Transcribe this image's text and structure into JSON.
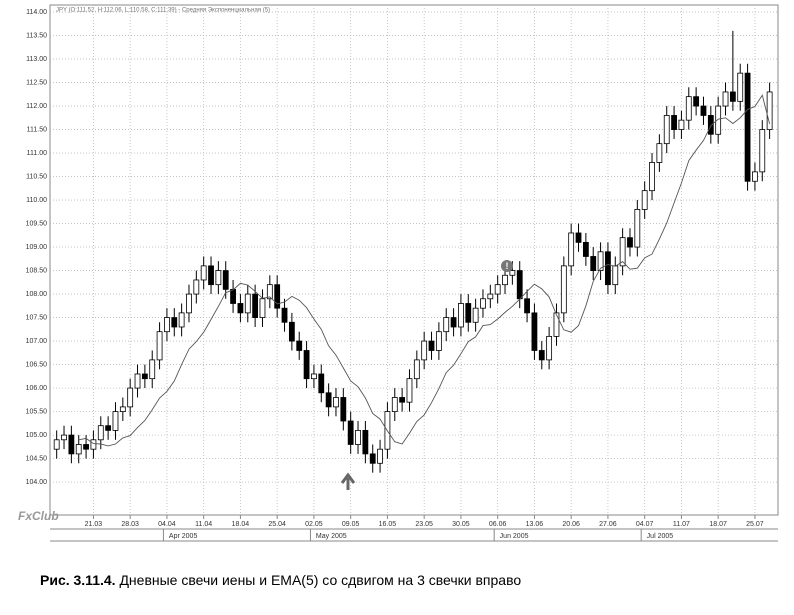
{
  "chart_data": {
    "type": "candlestick",
    "header": "JPY (O:111.52, H:112.06, L:110.58, C:111.39) - Средняя Экспоненциальная (5)",
    "categories": [
      null,
      null,
      null,
      null,
      null,
      "21.03",
      null,
      null,
      null,
      null,
      "28.03",
      null,
      null,
      null,
      null,
      "04.04",
      null,
      null,
      null,
      null,
      "11.04",
      null,
      null,
      null,
      null,
      "18.04",
      null,
      null,
      null,
      null,
      "25.04",
      null,
      null,
      null,
      null,
      "02.05",
      null,
      null,
      null,
      null,
      "09.05",
      null,
      null,
      null,
      null,
      "16.05",
      null,
      null,
      null,
      null,
      "23.05",
      null,
      null,
      null,
      null,
      "30.05",
      null,
      null,
      null,
      null,
      "06.06",
      null,
      null,
      null,
      null,
      "13.06",
      null,
      null,
      null,
      null,
      "20.06",
      null,
      null,
      null,
      null,
      "27.06",
      null,
      null,
      null,
      null,
      "04.07",
      null,
      null,
      null,
      null,
      "11.07",
      null,
      null,
      null,
      null,
      "18.07",
      null,
      null,
      null,
      null,
      "25.07",
      null,
      null
    ],
    "month_labels": [
      "Apr 2005",
      "May 2005",
      "Jun 2005",
      "Jul 2005"
    ],
    "open": [
      104.7,
      104.9,
      105.0,
      104.6,
      104.8,
      104.7,
      104.9,
      105.2,
      105.1,
      105.5,
      105.6,
      106.0,
      106.3,
      106.2,
      106.6,
      107.2,
      107.5,
      107.3,
      107.6,
      108.0,
      108.3,
      108.6,
      108.2,
      108.5,
      108.1,
      107.8,
      107.6,
      108.0,
      107.5,
      107.9,
      108.2,
      107.7,
      107.4,
      107.0,
      106.8,
      106.2,
      106.3,
      105.9,
      105.6,
      105.8,
      105.3,
      104.8,
      105.1,
      104.6,
      104.4,
      104.7,
      105.5,
      105.8,
      105.7,
      106.2,
      106.6,
      107.0,
      106.8,
      107.2,
      107.5,
      107.3,
      107.8,
      107.4,
      107.7,
      107.9,
      108.0,
      108.2,
      108.4,
      108.5,
      107.9,
      107.6,
      106.8,
      106.6,
      107.1,
      107.6,
      108.6,
      109.3,
      109.1,
      108.8,
      108.5,
      108.9,
      108.2,
      108.6,
      109.2,
      109.0,
      109.8,
      110.2,
      110.8,
      111.2,
      111.8,
      111.5,
      111.7,
      112.2,
      112.0,
      111.8,
      111.4,
      112.0,
      112.3,
      112.1,
      112.7,
      110.4,
      110.6,
      111.5
    ],
    "high": [
      105.1,
      105.2,
      105.2,
      105.0,
      105.0,
      105.1,
      105.4,
      105.4,
      105.7,
      105.8,
      106.2,
      106.5,
      106.5,
      106.8,
      107.4,
      107.7,
      107.7,
      107.8,
      108.2,
      108.5,
      108.8,
      108.8,
      108.7,
      108.7,
      108.3,
      108.0,
      108.2,
      108.2,
      108.1,
      108.4,
      108.4,
      107.9,
      107.6,
      107.2,
      107.0,
      106.5,
      106.5,
      106.1,
      106.0,
      106.0,
      105.5,
      105.3,
      105.3,
      104.8,
      104.9,
      105.7,
      106.0,
      106.0,
      106.4,
      106.8,
      107.2,
      107.2,
      107.4,
      107.7,
      107.7,
      108.0,
      108.0,
      107.9,
      108.1,
      108.2,
      108.4,
      108.6,
      108.7,
      108.7,
      108.1,
      107.8,
      107.0,
      107.3,
      107.8,
      108.8,
      109.5,
      109.5,
      109.3,
      109.0,
      109.1,
      109.1,
      108.8,
      109.4,
      109.4,
      110.0,
      110.4,
      111.0,
      111.4,
      112.0,
      112.0,
      111.9,
      112.4,
      112.4,
      112.2,
      112.0,
      112.2,
      112.5,
      113.6,
      112.9,
      112.9,
      110.8,
      111.7,
      112.5
    ],
    "low": [
      104.5,
      104.7,
      104.4,
      104.4,
      104.5,
      104.5,
      104.7,
      104.9,
      104.9,
      105.3,
      105.4,
      105.8,
      106.0,
      106.0,
      106.4,
      107.0,
      107.1,
      107.1,
      107.4,
      107.8,
      108.1,
      108.0,
      108.0,
      107.9,
      107.6,
      107.4,
      107.4,
      107.3,
      107.3,
      107.7,
      107.5,
      107.2,
      106.8,
      106.6,
      106.0,
      106.0,
      105.7,
      105.4,
      105.4,
      105.1,
      104.6,
      104.6,
      104.4,
      104.2,
      104.2,
      104.5,
      105.3,
      105.5,
      105.5,
      106.0,
      106.4,
      106.6,
      106.6,
      107.0,
      107.1,
      107.1,
      107.2,
      107.2,
      107.5,
      107.7,
      107.8,
      108.0,
      108.2,
      107.7,
      107.4,
      106.6,
      106.4,
      106.4,
      106.9,
      107.4,
      108.4,
      108.9,
      108.6,
      108.3,
      108.3,
      108.0,
      108.0,
      108.4,
      108.8,
      108.8,
      109.6,
      110.0,
      110.6,
      111.0,
      111.3,
      111.3,
      111.5,
      111.8,
      111.6,
      111.2,
      111.2,
      111.8,
      111.9,
      111.9,
      110.2,
      110.2,
      110.4,
      111.3
    ],
    "close": [
      104.9,
      105.0,
      104.6,
      104.8,
      104.7,
      104.9,
      105.2,
      105.1,
      105.5,
      105.6,
      106.0,
      106.3,
      106.2,
      106.6,
      107.2,
      107.5,
      107.3,
      107.6,
      108.0,
      108.3,
      108.6,
      108.2,
      108.5,
      108.1,
      107.8,
      107.6,
      108.0,
      107.5,
      107.9,
      108.2,
      107.7,
      107.4,
      107.0,
      106.8,
      106.2,
      106.3,
      105.9,
      105.6,
      105.8,
      105.3,
      104.8,
      105.1,
      104.6,
      104.4,
      104.7,
      105.5,
      105.8,
      105.7,
      106.2,
      106.6,
      107.0,
      106.8,
      107.2,
      107.5,
      107.3,
      107.8,
      107.4,
      107.7,
      107.9,
      108.0,
      108.2,
      108.4,
      108.5,
      107.9,
      107.6,
      106.8,
      106.6,
      107.1,
      107.6,
      108.6,
      109.3,
      109.1,
      108.8,
      108.5,
      108.9,
      108.2,
      108.6,
      109.2,
      109.0,
      109.8,
      110.2,
      110.8,
      111.2,
      111.8,
      111.5,
      111.7,
      112.2,
      112.0,
      111.8,
      111.4,
      112.0,
      112.3,
      112.1,
      112.7,
      110.4,
      110.6,
      111.5,
      112.3
    ],
    "ema": [
      null,
      null,
      null,
      104.9,
      104.93,
      104.82,
      104.81,
      104.77,
      104.81,
      104.94,
      104.99,
      105.16,
      105.31,
      105.54,
      105.79,
      105.93,
      106.15,
      106.5,
      106.83,
      106.99,
      107.19,
      107.46,
      107.74,
      108.03,
      108.09,
      108.23,
      108.19,
      108.06,
      107.91,
      107.94,
      107.79,
      107.83,
      107.95,
      107.87,
      107.71,
      107.47,
      107.25,
      106.9,
      106.7,
      106.43,
      106.15,
      106.03,
      105.79,
      105.46,
      105.34,
      105.09,
      104.86,
      104.81,
      105.04,
      105.29,
      105.43,
      105.69,
      105.99,
      106.33,
      106.49,
      106.73,
      106.99,
      107.09,
      107.33,
      107.35,
      107.47,
      107.61,
      107.74,
      107.89,
      108.06,
      108.21,
      108.11,
      107.94,
      107.56,
      107.24,
      107.19,
      107.33,
      107.75,
      108.27,
      108.55,
      108.63,
      108.59,
      108.69,
      108.53,
      108.55,
      108.77,
      108.85,
      109.17,
      109.51,
      109.94,
      110.36,
      110.84,
      111.06,
      111.27,
      111.58,
      111.72,
      111.75,
      111.63,
      111.75,
      111.93,
      111.99,
      112.23,
      111.62
    ],
    "ylim": [
      103.3,
      114.15
    ],
    "yticks": [
      {
        "value": 114,
        "label": "114.00"
      },
      {
        "value": 113.5,
        "label": "113.50"
      },
      {
        "value": 113,
        "label": "113.00"
      },
      {
        "value": 112.5,
        "label": "112.50"
      },
      {
        "value": 112,
        "label": "112.00"
      },
      {
        "value": 111.5,
        "label": "111.50"
      },
      {
        "value": 111,
        "label": "111.00"
      },
      {
        "value": 110.5,
        "label": "110.50"
      },
      {
        "value": 110,
        "label": "110.00"
      },
      {
        "value": 109.5,
        "label": "109.50"
      },
      {
        "value": 109,
        "label": "109.00"
      },
      {
        "value": 108.5,
        "label": "108.50"
      },
      {
        "value": 108,
        "label": "108.00"
      },
      {
        "value": 107.5,
        "label": "107.50"
      },
      {
        "value": 107,
        "label": "107.00"
      },
      {
        "value": 106.5,
        "label": "106.50"
      },
      {
        "value": 106,
        "label": "106.00"
      },
      {
        "value": 105.5,
        "label": "105.50"
      },
      {
        "value": 105,
        "label": "105.00"
      },
      {
        "value": 104.5,
        "label": "104.50"
      },
      {
        "value": 104,
        "label": "104.00"
      }
    ],
    "grid": true,
    "logo": "FxClub",
    "caption_label": "Рис. 3.11.4.",
    "caption_text": "Дневные свечи иены и EMA(5) со сдвигом на 3 свечки вправо"
  }
}
